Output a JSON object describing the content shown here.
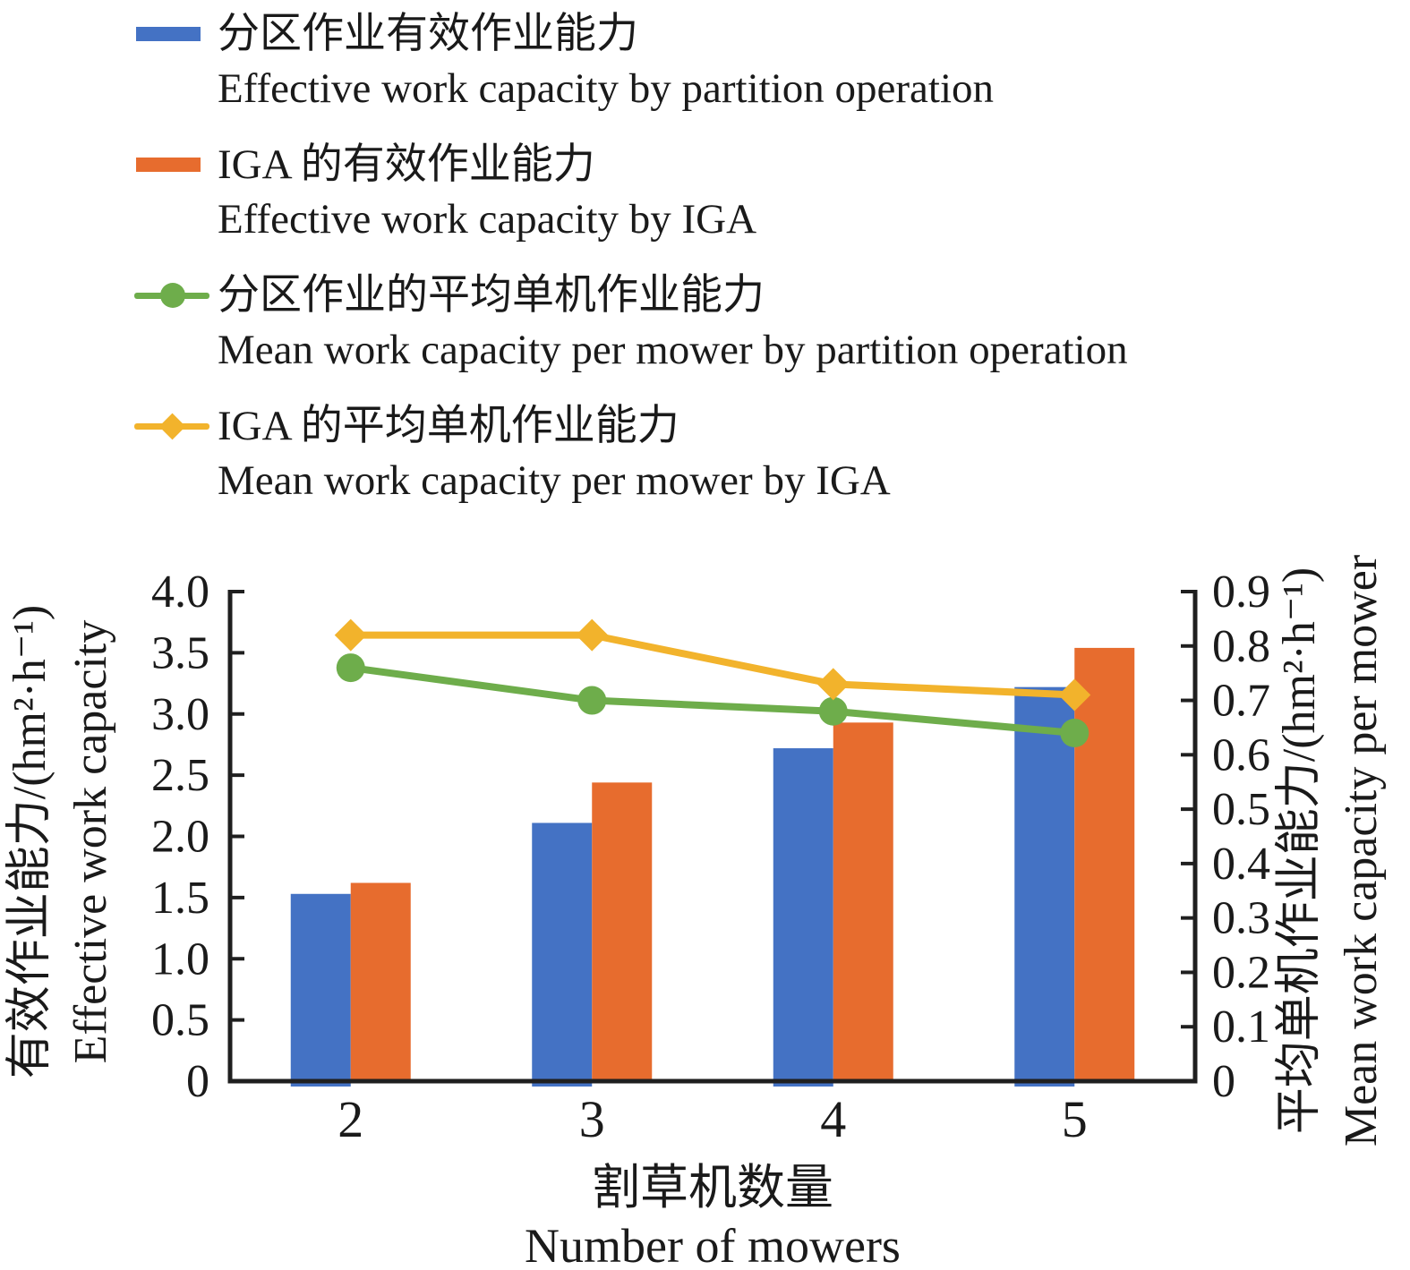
{
  "legend": {
    "items": [
      {
        "zh": "分区作业有效作业能力",
        "en": "Effective work capacity by partition operation",
        "marker": "bar-swatch",
        "color_key": "blue"
      },
      {
        "zh": "IGA 的有效作业能力",
        "en": "Effective work capacity by IGA",
        "marker": "bar-swatch",
        "color_key": "orange"
      },
      {
        "zh": "分区作业的平均单机作业能力",
        "en": "Mean work capacity per mower by partition operation",
        "marker": "line-circle",
        "color_key": "green"
      },
      {
        "zh": "IGA 的平均单机作业能力",
        "en": "Mean work capacity per mower by IGA",
        "marker": "line-diamond",
        "color_key": "yellow"
      }
    ]
  },
  "chart_data": {
    "type": "bar+line",
    "categories": [
      "2",
      "3",
      "4",
      "5"
    ],
    "bar_series": [
      {
        "name": "Effective work capacity by partition operation",
        "axis": "left",
        "color_key": "blue",
        "values": [
          1.53,
          2.11,
          2.72,
          3.22
        ]
      },
      {
        "name": "Effective work capacity by IGA",
        "axis": "left",
        "color_key": "orange",
        "values": [
          1.62,
          2.44,
          2.93,
          3.54
        ]
      }
    ],
    "line_series": [
      {
        "name": "Mean work capacity per mower by partition operation",
        "axis": "right",
        "color_key": "green",
        "marker": "circle",
        "values": [
          0.76,
          0.7,
          0.68,
          0.64
        ]
      },
      {
        "name": "Mean work capacity per mower by IGA",
        "axis": "right",
        "color_key": "yellow",
        "marker": "diamond",
        "values": [
          0.82,
          0.82,
          0.73,
          0.71
        ]
      }
    ],
    "left_axis": {
      "title_zh": "有效作业能力/(hm²·h⁻¹)",
      "title_en": "Effective work capacity",
      "min": 0,
      "max": 4.0,
      "step": 0.5,
      "tick_labels": [
        "0",
        "0.5",
        "1.0",
        "1.5",
        "2.0",
        "2.5",
        "3.0",
        "3.5",
        "4.0"
      ]
    },
    "right_axis": {
      "title_zh": "平均单机作业能力/(hm²·h⁻¹)",
      "title_en": "Mean work capacity per mower",
      "min": 0,
      "max": 0.9,
      "step": 0.1,
      "tick_labels": [
        "0",
        "0.1",
        "0.2",
        "0.3",
        "0.4",
        "0.5",
        "0.6",
        "0.7",
        "0.8",
        "0.9"
      ]
    },
    "x_axis": {
      "title_zh": "割草机数量",
      "title_en": "Number of mowers",
      "tick_labels": [
        "2",
        "3",
        "4",
        "5"
      ]
    },
    "grid": false,
    "legend_position": "top-left"
  },
  "colors": {
    "blue": "#4472C4",
    "orange": "#E76C2E",
    "green": "#6EAD4B",
    "yellow": "#F2B32C",
    "axis": "#1F1F1F",
    "text": "#1A1A1A"
  }
}
